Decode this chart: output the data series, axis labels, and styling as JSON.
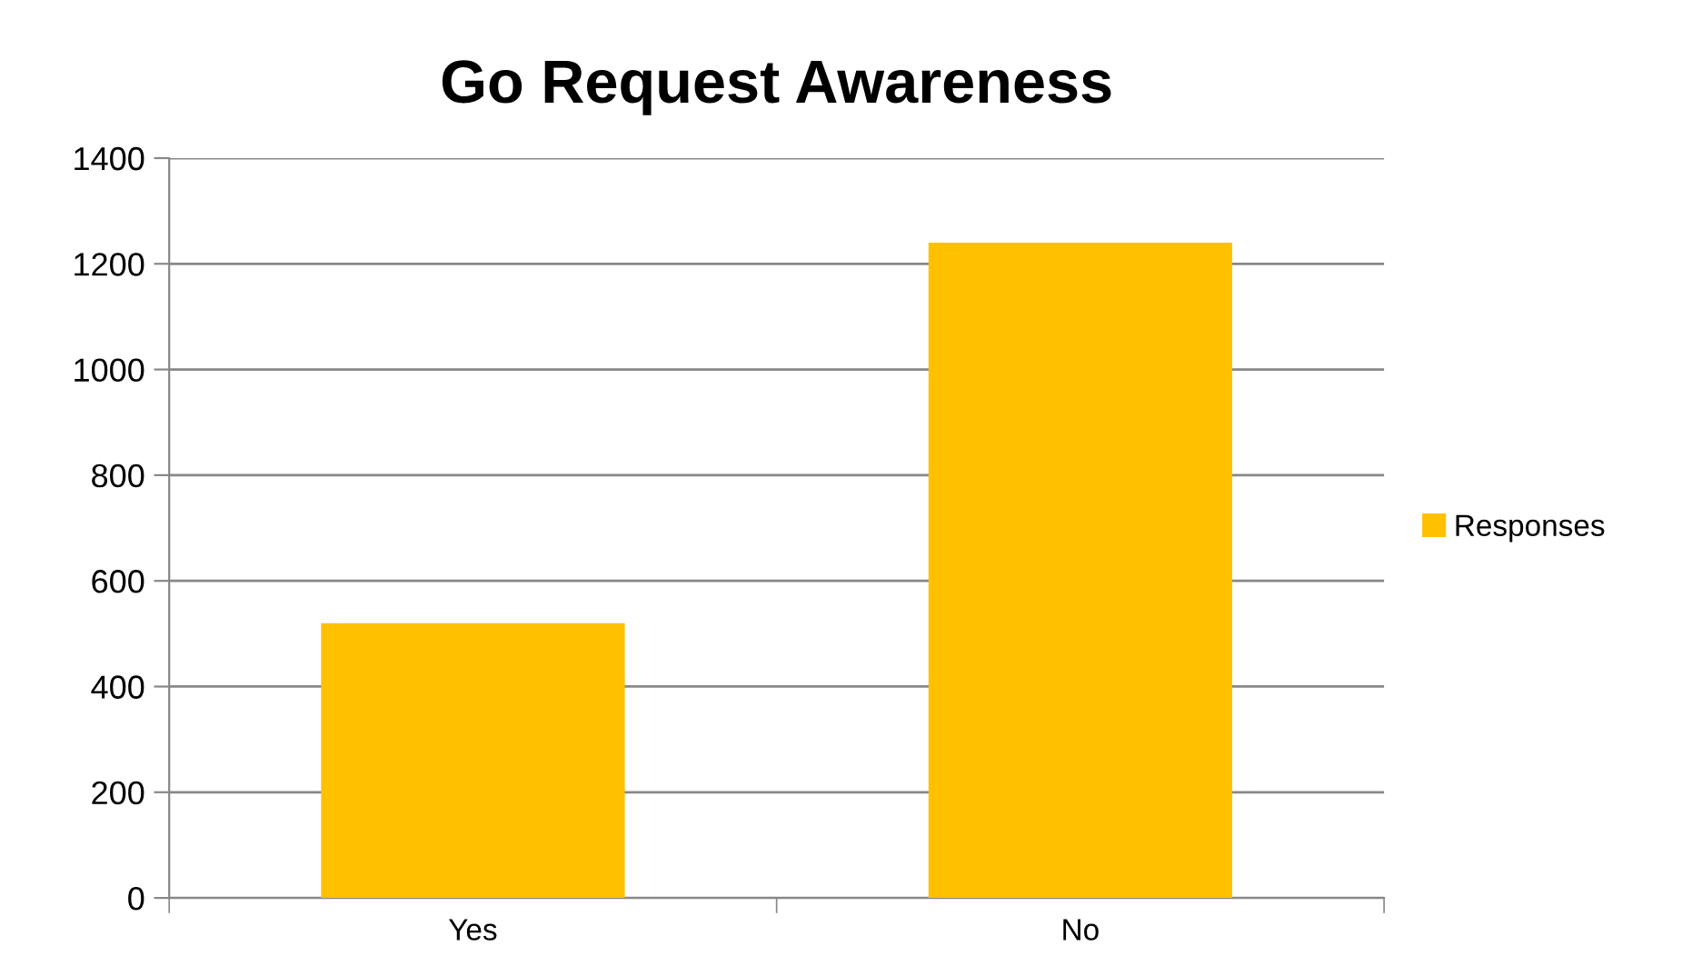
{
  "chart_data": {
    "type": "bar",
    "title": "Go Request Awareness",
    "categories": [
      "Yes",
      "No"
    ],
    "series": [
      {
        "name": "Responses",
        "color": "#ffc000",
        "values": [
          520,
          1240
        ]
      }
    ],
    "ylim": [
      0,
      1400
    ],
    "yticks": [
      0,
      200,
      400,
      600,
      800,
      1000,
      1200,
      1400
    ],
    "grid": "y",
    "legend": "right"
  }
}
